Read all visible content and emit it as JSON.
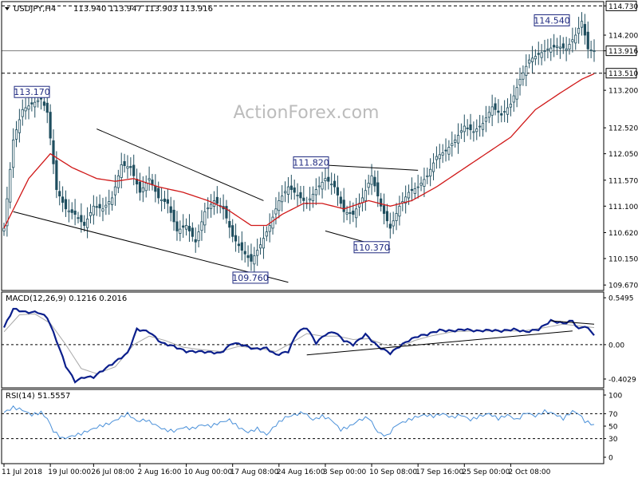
{
  "header": {
    "symbol_tf": "USDJPY,H4",
    "ohlc": "113.940 113.947 113.903 113.916"
  },
  "watermark": "ActionForex.com",
  "colors": {
    "candle": "#1f4e5f",
    "ma": "#d01818",
    "macd": "#0b1f8c",
    "signal": "#a8a8a8",
    "rsi": "#4a90d9",
    "label_border": "#1f2a80",
    "grid": "#000000",
    "background": "#ffffff"
  },
  "x_axis": {
    "ticks": [
      "11 Jul 2018",
      "19 Jul 00:00",
      "26 Jul 08:00",
      "2 Aug 16:00",
      "10 Aug 00:00",
      "17 Aug 08:00",
      "24 Aug 16:00",
      "3 Sep 00:00",
      "10 Sep 08:00",
      "17 Sep 16:00",
      "25 Sep 00:00",
      "2 Oct 08:00"
    ]
  },
  "chart_data": [
    {
      "type": "candlestick",
      "name": "price",
      "y_ticks": [
        "114.730",
        "114.200",
        "113.916",
        "113.510",
        "113.200",
        "112.520",
        "112.050",
        "111.570",
        "111.100",
        "110.620",
        "110.150",
        "109.670"
      ],
      "ylim": [
        109.6,
        114.75
      ],
      "annotations": [
        {
          "label": "114.540",
          "value": 114.54
        },
        {
          "label": "113.170",
          "value": 113.17
        },
        {
          "label": "111.820",
          "value": 111.82
        },
        {
          "label": "110.370",
          "value": 110.37
        },
        {
          "label": "109.760",
          "value": 109.76
        }
      ],
      "levels": [
        {
          "label": "114.730",
          "value": 114.73,
          "style": "dashed"
        },
        {
          "label": "113.916",
          "value": 113.916,
          "style": "solid"
        },
        {
          "label": "113.510",
          "value": 113.51,
          "style": "dashed"
        }
      ],
      "close_anchors": [
        [
          0,
          110.7
        ],
        [
          3,
          112.3
        ],
        [
          6,
          112.85
        ],
        [
          9,
          112.95
        ],
        [
          12,
          113.05
        ],
        [
          14,
          112.8
        ],
        [
          17,
          111.4
        ],
        [
          20,
          111.05
        ],
        [
          23,
          110.95
        ],
        [
          26,
          110.75
        ],
        [
          29,
          111.1
        ],
        [
          32,
          111.05
        ],
        [
          35,
          111.25
        ],
        [
          38,
          111.85
        ],
        [
          41,
          111.8
        ],
        [
          44,
          111.35
        ],
        [
          47,
          111.6
        ],
        [
          50,
          111.25
        ],
        [
          53,
          111.15
        ],
        [
          56,
          110.65
        ],
        [
          59,
          110.75
        ],
        [
          62,
          110.45
        ],
        [
          65,
          111.0
        ],
        [
          68,
          111.2
        ],
        [
          71,
          111.05
        ],
        [
          74,
          110.55
        ],
        [
          77,
          110.3
        ],
        [
          80,
          110.1
        ],
        [
          83,
          110.4
        ],
        [
          86,
          110.75
        ],
        [
          89,
          111.2
        ],
        [
          92,
          111.45
        ],
        [
          95,
          111.3
        ],
        [
          98,
          111.15
        ],
        [
          101,
          111.4
        ],
        [
          104,
          111.6
        ],
        [
          107,
          111.45
        ],
        [
          110,
          111.0
        ],
        [
          113,
          110.95
        ],
        [
          116,
          111.25
        ],
        [
          119,
          111.65
        ],
        [
          122,
          111.1
        ],
        [
          125,
          110.7
        ],
        [
          128,
          111.1
        ],
        [
          131,
          111.35
        ],
        [
          134,
          111.45
        ],
        [
          137,
          111.65
        ],
        [
          140,
          112.0
        ],
        [
          143,
          112.1
        ],
        [
          146,
          112.3
        ],
        [
          149,
          112.55
        ],
        [
          152,
          112.45
        ],
        [
          155,
          112.6
        ],
        [
          158,
          112.9
        ],
        [
          161,
          112.75
        ],
        [
          164,
          112.95
        ],
        [
          167,
          113.4
        ],
        [
          170,
          113.75
        ],
        [
          173,
          113.85
        ],
        [
          176,
          113.95
        ],
        [
          179,
          114.0
        ],
        [
          182,
          113.95
        ],
        [
          185,
          114.2
        ],
        [
          187,
          114.45
        ],
        [
          189,
          113.95
        ],
        [
          191,
          113.916
        ]
      ],
      "ma_anchors": [
        [
          0,
          110.7
        ],
        [
          8,
          111.6
        ],
        [
          15,
          112.05
        ],
        [
          22,
          111.8
        ],
        [
          30,
          111.6
        ],
        [
          36,
          111.55
        ],
        [
          42,
          111.6
        ],
        [
          50,
          111.45
        ],
        [
          58,
          111.35
        ],
        [
          66,
          111.2
        ],
        [
          72,
          111.05
        ],
        [
          80,
          110.75
        ],
        [
          85,
          110.75
        ],
        [
          90,
          110.95
        ],
        [
          97,
          111.15
        ],
        [
          103,
          111.15
        ],
        [
          110,
          111.05
        ],
        [
          118,
          111.2
        ],
        [
          125,
          111.1
        ],
        [
          132,
          111.2
        ],
        [
          140,
          111.45
        ],
        [
          148,
          111.75
        ],
        [
          156,
          112.05
        ],
        [
          164,
          112.35
        ],
        [
          172,
          112.85
        ],
        [
          180,
          113.15
        ],
        [
          187,
          113.4
        ],
        [
          191,
          113.5
        ]
      ],
      "lines": [
        {
          "from": [
            3,
            111.0
          ],
          "to": [
            92,
            109.72
          ]
        },
        {
          "from": [
            30,
            112.5
          ],
          "to": [
            84,
            111.2
          ]
        },
        {
          "from": [
            102,
            111.85
          ],
          "to": [
            134,
            111.75
          ]
        },
        {
          "from": [
            104,
            110.65
          ],
          "to": [
            125,
            110.32
          ]
        }
      ]
    },
    {
      "type": "line",
      "name": "MACD",
      "title": "MACD(12,26,9) 0.1216 0.2016",
      "y_ticks": [
        "0.5495",
        "0.00",
        "-0.4029"
      ],
      "ylim": [
        -0.45,
        0.56
      ],
      "series": [
        {
          "name": "",
          "values": [
            [
              0,
              0.2
            ],
            [
              3,
              0.42
            ],
            [
              7,
              0.38
            ],
            [
              11,
              0.38
            ],
            [
              14,
              0.32
            ],
            [
              17,
              0.05
            ],
            [
              20,
              -0.25
            ],
            [
              23,
              -0.43
            ],
            [
              26,
              -0.38
            ],
            [
              29,
              -0.38
            ],
            [
              32,
              -0.3
            ],
            [
              36,
              -0.2
            ],
            [
              40,
              -0.1
            ],
            [
              43,
              0.18
            ],
            [
              47,
              0.15
            ],
            [
              51,
              0.02
            ],
            [
              55,
              -0.02
            ],
            [
              59,
              -0.08
            ],
            [
              63,
              -0.08
            ],
            [
              67,
              -0.09
            ],
            [
              70,
              -0.1
            ],
            [
              74,
              0.02
            ],
            [
              77,
              0.0
            ],
            [
              81,
              -0.05
            ],
            [
              85,
              -0.04
            ],
            [
              88,
              -0.12
            ],
            [
              92,
              -0.08
            ],
            [
              95,
              0.15
            ],
            [
              98,
              0.2
            ],
            [
              101,
              0.02
            ],
            [
              104,
              0.12
            ],
            [
              107,
              0.15
            ],
            [
              110,
              0.05
            ],
            [
              113,
              0.0
            ],
            [
              117,
              0.12
            ],
            [
              121,
              -0.02
            ],
            [
              125,
              -0.1
            ],
            [
              128,
              -0.02
            ],
            [
              131,
              0.05
            ],
            [
              134,
              0.1
            ],
            [
              137,
              0.12
            ],
            [
              141,
              0.17
            ],
            [
              145,
              0.16
            ],
            [
              149,
              0.18
            ],
            [
              153,
              0.16
            ],
            [
              157,
              0.17
            ],
            [
              161,
              0.16
            ],
            [
              165,
              0.18
            ],
            [
              169,
              0.15
            ],
            [
              173,
              0.18
            ],
            [
              177,
              0.28
            ],
            [
              181,
              0.25
            ],
            [
              184,
              0.28
            ],
            [
              186,
              0.18
            ],
            [
              188,
              0.22
            ],
            [
              191,
              0.12
            ]
          ]
        },
        {
          "name": "",
          "values": [
            [
              0,
              0.15
            ],
            [
              5,
              0.35
            ],
            [
              10,
              0.36
            ],
            [
              15,
              0.25
            ],
            [
              20,
              0.0
            ],
            [
              25,
              -0.28
            ],
            [
              30,
              -0.34
            ],
            [
              36,
              -0.26
            ],
            [
              42,
              0.0
            ],
            [
              47,
              0.1
            ],
            [
              52,
              0.05
            ],
            [
              58,
              -0.03
            ],
            [
              64,
              -0.06
            ],
            [
              70,
              -0.08
            ],
            [
              76,
              -0.02
            ],
            [
              82,
              -0.04
            ],
            [
              88,
              -0.08
            ],
            [
              93,
              0.02
            ],
            [
              98,
              0.13
            ],
            [
              103,
              0.1
            ],
            [
              108,
              0.1
            ],
            [
              113,
              0.06
            ],
            [
              118,
              0.07
            ],
            [
              123,
              0.0
            ],
            [
              128,
              -0.03
            ],
            [
              133,
              0.05
            ],
            [
              138,
              0.1
            ],
            [
              145,
              0.15
            ],
            [
              152,
              0.16
            ],
            [
              160,
              0.16
            ],
            [
              168,
              0.16
            ],
            [
              175,
              0.2
            ],
            [
              181,
              0.24
            ],
            [
              186,
              0.22
            ],
            [
              191,
              0.2
            ]
          ]
        }
      ],
      "lines": [
        {
          "from": [
            98,
            -0.12
          ],
          "to": [
            184,
            0.16
          ]
        },
        {
          "from": [
            177,
            0.28
          ],
          "to": [
            191,
            0.24
          ]
        }
      ]
    },
    {
      "type": "line",
      "name": "RSI",
      "title": "RSI(14) 51.5557",
      "y_ticks": [
        "100",
        "70",
        "50",
        "30",
        "0"
      ],
      "ylim": [
        0,
        100
      ],
      "levels": [
        70,
        30
      ],
      "series": [
        {
          "name": "",
          "values": [
            [
              0,
              72
            ],
            [
              3,
              80
            ],
            [
              6,
              76
            ],
            [
              9,
              68
            ],
            [
              12,
              72
            ],
            [
              14,
              62
            ],
            [
              16,
              42
            ],
            [
              19,
              30
            ],
            [
              22,
              34
            ],
            [
              25,
              38
            ],
            [
              28,
              44
            ],
            [
              31,
              50
            ],
            [
              34,
              54
            ],
            [
              37,
              62
            ],
            [
              40,
              70
            ],
            [
              43,
              58
            ],
            [
              46,
              60
            ],
            [
              49,
              52
            ],
            [
              52,
              44
            ],
            [
              55,
              42
            ],
            [
              58,
              48
            ],
            [
              61,
              46
            ],
            [
              64,
              52
            ],
            [
              67,
              50
            ],
            [
              70,
              56
            ],
            [
              73,
              60
            ],
            [
              76,
              48
            ],
            [
              79,
              40
            ],
            [
              82,
              46
            ],
            [
              85,
              36
            ],
            [
              88,
              52
            ],
            [
              91,
              64
            ],
            [
              94,
              68
            ],
            [
              97,
              72
            ],
            [
              100,
              60
            ],
            [
              103,
              66
            ],
            [
              106,
              60
            ],
            [
              109,
              44
            ],
            [
              112,
              50
            ],
            [
              115,
              60
            ],
            [
              118,
              64
            ],
            [
              121,
              40
            ],
            [
              124,
              34
            ],
            [
              127,
              52
            ],
            [
              130,
              58
            ],
            [
              133,
              64
            ],
            [
              136,
              68
            ],
            [
              139,
              66
            ],
            [
              142,
              70
            ],
            [
              145,
              64
            ],
            [
              148,
              68
            ],
            [
              151,
              60
            ],
            [
              154,
              66
            ],
            [
              157,
              70
            ],
            [
              160,
              62
            ],
            [
              163,
              68
            ],
            [
              166,
              60
            ],
            [
              169,
              72
            ],
            [
              172,
              66
            ],
            [
              175,
              74
            ],
            [
              178,
              70
            ],
            [
              181,
              62
            ],
            [
              184,
              74
            ],
            [
              186,
              70
            ],
            [
              188,
              58
            ],
            [
              190,
              54
            ],
            [
              191,
              51.6
            ]
          ]
        }
      ]
    }
  ]
}
